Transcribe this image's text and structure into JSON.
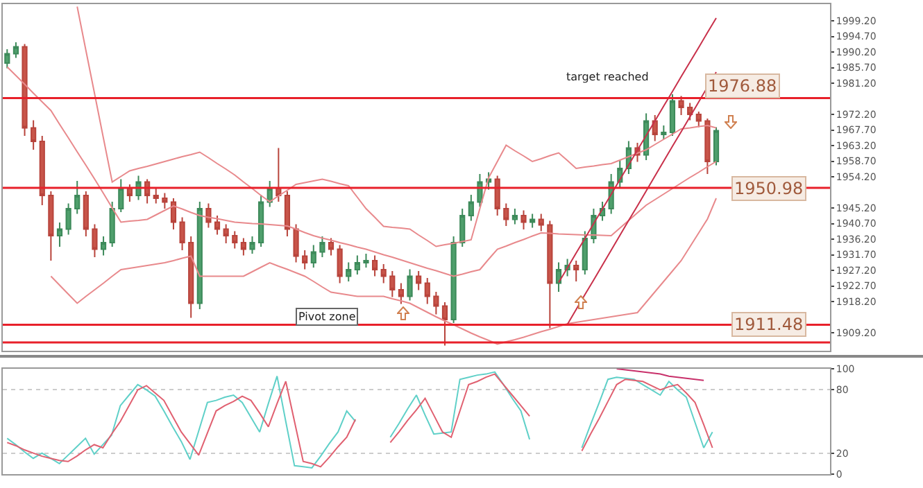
{
  "chart_data": [
    {
      "type": "candlestick",
      "categories": [
        null,
        null,
        null,
        null,
        null,
        null,
        null,
        null,
        null,
        null,
        null,
        null,
        null,
        null,
        null,
        null,
        null,
        null,
        null,
        null,
        null,
        null,
        null,
        null,
        null,
        null,
        null,
        null,
        null,
        null,
        null,
        null,
        null,
        null,
        null,
        null,
        null,
        null,
        null,
        null,
        null,
        null,
        null,
        null,
        null,
        null,
        null,
        null,
        null,
        null,
        null,
        null,
        null,
        null,
        null,
        null,
        null,
        null,
        null,
        null,
        null,
        null,
        null,
        null,
        null,
        null,
        null,
        null,
        null,
        null,
        null,
        null,
        null,
        null,
        null,
        null,
        null,
        null,
        null,
        null,
        null,
        null
      ],
      "ohlc": [
        [
          1987.0,
          1991.0,
          1985.5,
          1989.7
        ],
        [
          1989.7,
          1993.0,
          1988.5,
          1991.7
        ],
        [
          1991.7,
          1992.5,
          1966.0,
          1968.3
        ],
        [
          1968.3,
          1970.5,
          1962.0,
          1964.4
        ],
        [
          1964.4,
          1966.0,
          1946.0,
          1948.8
        ],
        [
          1948.8,
          1950.0,
          1930.0,
          1937.2
        ],
        [
          1937.2,
          1941.0,
          1934.0,
          1939.1
        ],
        [
          1939.1,
          1946.5,
          1937.5,
          1945.0
        ],
        [
          1945.0,
          1953.0,
          1943.5,
          1948.8
        ],
        [
          1948.8,
          1950.0,
          1937.0,
          1939.1
        ],
        [
          1939.1,
          1940.5,
          1931.0,
          1933.3
        ],
        [
          1933.3,
          1937.0,
          1931.5,
          1935.2
        ],
        [
          1935.2,
          1947.0,
          1934.0,
          1945.0
        ],
        [
          1945.0,
          1953.5,
          1944.0,
          1950.8
        ],
        [
          1950.8,
          1952.0,
          1947.0,
          1948.8
        ],
        [
          1948.8,
          1954.5,
          1947.5,
          1952.7
        ],
        [
          1952.7,
          1953.5,
          1946.5,
          1948.8
        ],
        [
          1948.8,
          1951.0,
          1946.5,
          1948.0
        ],
        [
          1948.0,
          1949.5,
          1945.0,
          1946.9
        ],
        [
          1946.9,
          1948.0,
          1939.0,
          1941.1
        ],
        [
          1941.1,
          1942.5,
          1933.0,
          1935.2
        ],
        [
          1935.2,
          1937.0,
          1913.5,
          1917.7
        ],
        [
          1917.7,
          1947.0,
          1916.0,
          1945.0
        ],
        [
          1945.0,
          1946.5,
          1939.5,
          1941.1
        ],
        [
          1941.1,
          1943.0,
          1937.5,
          1939.1
        ],
        [
          1939.1,
          1940.5,
          1935.0,
          1937.2
        ],
        [
          1937.2,
          1938.5,
          1933.5,
          1935.2
        ],
        [
          1935.2,
          1936.5,
          1931.5,
          1933.3
        ],
        [
          1933.3,
          1937.0,
          1932.0,
          1935.2
        ],
        [
          1935.2,
          1949.0,
          1934.0,
          1946.9
        ],
        [
          1946.9,
          1953.0,
          1945.5,
          1950.8
        ],
        [
          1950.8,
          1962.5,
          1947.0,
          1948.8
        ],
        [
          1948.8,
          1950.0,
          1937.0,
          1939.1
        ],
        [
          1939.1,
          1940.5,
          1929.5,
          1931.3
        ],
        [
          1931.3,
          1933.0,
          1927.5,
          1929.4
        ],
        [
          1929.4,
          1934.5,
          1928.0,
          1932.5
        ],
        [
          1932.5,
          1937.0,
          1931.0,
          1935.2
        ],
        [
          1935.2,
          1936.5,
          1931.5,
          1933.3
        ],
        [
          1933.3,
          1934.5,
          1923.5,
          1925.5
        ],
        [
          1925.5,
          1929.5,
          1924.0,
          1927.4
        ],
        [
          1927.4,
          1931.5,
          1926.0,
          1929.4
        ],
        [
          1929.4,
          1932.0,
          1928.0,
          1930.0
        ],
        [
          1930.0,
          1931.5,
          1925.5,
          1927.4
        ],
        [
          1927.4,
          1929.0,
          1923.5,
          1925.5
        ],
        [
          1925.5,
          1927.0,
          1919.5,
          1921.6
        ],
        [
          1921.6,
          1923.5,
          1917.5,
          1919.7
        ],
        [
          1919.7,
          1927.5,
          1918.5,
          1925.5
        ],
        [
          1925.5,
          1927.0,
          1921.5,
          1923.5
        ],
        [
          1923.5,
          1925.0,
          1917.5,
          1919.7
        ],
        [
          1919.7,
          1921.0,
          1914.5,
          1916.9
        ],
        [
          1916.9,
          1918.0,
          1905.5,
          1913.0
        ],
        [
          1913.0,
          1937.0,
          1912.0,
          1935.2
        ],
        [
          1935.2,
          1945.0,
          1934.0,
          1943.0
        ],
        [
          1943.0,
          1949.0,
          1941.5,
          1946.9
        ],
        [
          1946.9,
          1955.0,
          1945.5,
          1952.7
        ],
        [
          1952.7,
          1955.5,
          1950.5,
          1953.5
        ],
        [
          1953.5,
          1954.5,
          1943.0,
          1945.0
        ],
        [
          1945.0,
          1946.5,
          1940.0,
          1941.9
        ],
        [
          1941.9,
          1945.0,
          1940.5,
          1943.0
        ],
        [
          1943.0,
          1944.5,
          1939.0,
          1941.1
        ],
        [
          1941.1,
          1943.5,
          1939.5,
          1941.9
        ],
        [
          1941.9,
          1943.5,
          1938.5,
          1940.3
        ],
        [
          1940.3,
          1941.5,
          1910.5,
          1923.5
        ],
        [
          1923.5,
          1929.5,
          1921.0,
          1927.4
        ],
        [
          1927.4,
          1930.5,
          1925.5,
          1928.6
        ],
        [
          1928.6,
          1930.0,
          1924.0,
          1927.4
        ],
        [
          1927.4,
          1938.5,
          1926.0,
          1936.4
        ],
        [
          1936.4,
          1945.0,
          1935.0,
          1943.0
        ],
        [
          1943.0,
          1947.0,
          1941.5,
          1945.0
        ],
        [
          1945.0,
          1955.0,
          1943.5,
          1952.7
        ],
        [
          1952.7,
          1959.0,
          1951.0,
          1956.6
        ],
        [
          1956.6,
          1964.5,
          1955.0,
          1962.5
        ],
        [
          1962.5,
          1964.0,
          1958.5,
          1960.5
        ],
        [
          1960.5,
          1972.5,
          1959.0,
          1970.3
        ],
        [
          1970.3,
          1972.0,
          1964.5,
          1966.4
        ],
        [
          1966.4,
          1969.0,
          1965.0,
          1967.0
        ],
        [
          1967.0,
          1978.0,
          1966.0,
          1976.1
        ],
        [
          1976.1,
          1977.5,
          1972.0,
          1974.2
        ],
        [
          1974.2,
          1975.5,
          1970.5,
          1972.2
        ],
        [
          1972.2,
          1973.0,
          1968.5,
          1970.3
        ],
        [
          1970.3,
          1971.0,
          1955.0,
          1958.6
        ],
        [
          1958.6,
          1968.5,
          1957.5,
          1967.5
        ]
      ],
      "series": [
        {
          "type": "line",
          "color": "#e8898c",
          "values": [
            null,
            null,
            null,
            null,
            null,
            null,
            null,
            null,
            2003.3,
            1990.6,
            1978.0,
            1965.3,
            1952.7,
            1954.3,
            1955.9,
            1956.6,
            1957.2,
            1957.9,
            1958.6,
            1959.3,
            1960.0,
            1960.6,
            1961.3,
            1959.7,
            1958.0,
            1956.4,
            1954.7,
            1952.7,
            1950.8,
            1948.8,
            1947.0,
            1948.7,
            1950.3,
            1952.0,
            1952.5,
            1953.0,
            1953.5,
            1952.9,
            1952.2,
            1951.6,
            1948.3,
            1945.0,
            1942.5,
            1939.9,
            1939.6,
            1939.4,
            1939.1,
            1937.4,
            1935.8,
            1934.1,
            1934.6,
            1935.0,
            1935.5,
            1936.0,
            1945.0,
            1953.9,
            1958.6,
            1963.3,
            1961.7,
            1960.2,
            1958.6,
            1959.4,
            1960.3,
            1961.1,
            1958.9,
            1956.6,
            1957.0,
            1957.3,
            1957.7,
            1958.0,
            1959.0,
            1960.0,
            1961.0,
            1962.0,
            1963.5,
            1965.0,
            1966.5,
            1968.0,
            1968.3,
            1968.7,
            1969.0,
            1968.3
          ]
        },
        {
          "type": "line",
          "color": "#e8898c",
          "values": [
            1985.9,
            1983.4,
            1980.9,
            1978.3,
            1975.8,
            1973.3,
            1969.3,
            1965.4,
            1961.4,
            1957.5,
            1953.5,
            1949.4,
            1945.2,
            1941.1,
            1941.4,
            1941.6,
            1941.9,
            1943.2,
            1944.5,
            1945.8,
            1944.9,
            1943.9,
            1943.0,
            1942.5,
            1942.1,
            1941.6,
            1941.1,
            1940.9,
            1940.7,
            1940.6,
            1940.4,
            1940.2,
            1940.0,
            1939.1,
            1938.1,
            1937.2,
            1936.5,
            1935.9,
            1935.2,
            1934.6,
            1933.9,
            1933.3,
            1932.5,
            1931.7,
            1931.0,
            1930.2,
            1929.4,
            1928.6,
            1927.8,
            1927.1,
            1926.3,
            1925.5,
            1926.1,
            1926.8,
            1927.4,
            1930.4,
            1933.3,
            1934.2,
            1935.2,
            1936.1,
            1937.1,
            1938.0,
            1937.9,
            1937.7,
            1937.6,
            1937.5,
            1937.4,
            1937.4,
            1937.3,
            1937.2,
            1939.4,
            1941.6,
            1943.8,
            1946.0,
            1947.6,
            1949.2,
            1950.8,
            1952.4,
            1954.0,
            1955.5,
            1957.1,
            1958.6
          ]
        },
        {
          "type": "line",
          "color": "#e8898c",
          "values": [
            null,
            null,
            null,
            null,
            null,
            1925.5,
            1922.9,
            1920.3,
            1917.7,
            1919.7,
            1921.6,
            1923.5,
            1925.5,
            1927.4,
            1927.8,
            1928.2,
            1928.6,
            1929.0,
            1929.4,
            1930.0,
            1930.7,
            1931.3,
            1925.5,
            1925.5,
            1925.5,
            1925.5,
            1925.5,
            1925.5,
            1926.8,
            1928.1,
            1929.4,
            1928.4,
            1927.5,
            1926.5,
            1925.5,
            1924.0,
            1922.4,
            1920.9,
            1920.5,
            1920.1,
            1919.7,
            1919.7,
            1919.7,
            1919.7,
            1919.0,
            1918.4,
            1917.7,
            1916.4,
            1915.1,
            1913.8,
            1912.6,
            1911.5,
            1910.3,
            1909.1,
            1908.0,
            1907.0,
            1905.9,
            1906.6,
            1907.2,
            1907.9,
            1908.7,
            1909.5,
            1910.2,
            1911.0,
            1911.8,
            1912.2,
            1912.6,
            1913.0,
            1913.4,
            1913.8,
            1914.2,
            1914.6,
            1915.0,
            1918.0,
            1921.0,
            1924.0,
            1927.0,
            1930.0,
            1934.0,
            1938.0,
            1942.0,
            1948.0
          ]
        },
        {
          "type": "line",
          "color": "#c8304a",
          "values": [
            null,
            null,
            null,
            null,
            null,
            null,
            null,
            null,
            null,
            null,
            null,
            null,
            null,
            null,
            null,
            null,
            null,
            null,
            null,
            null,
            null,
            null,
            null,
            null,
            null,
            null,
            null,
            null,
            null,
            null,
            null,
            null,
            null,
            null,
            null,
            null,
            null,
            null,
            null,
            null,
            null,
            null,
            null,
            null,
            null,
            null,
            null,
            null,
            null,
            null,
            null,
            null,
            null,
            null,
            null,
            null,
            null,
            null,
            null,
            null,
            null,
            null,
            null,
            1923.7,
            1927.9,
            1932.2,
            1936.4,
            1940.7,
            1944.9,
            1949.1,
            1953.4,
            1957.6,
            1961.9,
            1966.1,
            1970.3,
            1974.6,
            1978.8,
            1983.1,
            1987.3,
            1991.5,
            1995.8,
            2000.0
          ]
        },
        {
          "type": "line",
          "color": "#c8304a",
          "values": [
            null,
            null,
            null,
            null,
            null,
            null,
            null,
            null,
            null,
            null,
            null,
            null,
            null,
            null,
            null,
            null,
            null,
            null,
            null,
            null,
            null,
            null,
            null,
            null,
            null,
            null,
            null,
            null,
            null,
            null,
            null,
            null,
            null,
            null,
            null,
            null,
            null,
            null,
            null,
            null,
            null,
            null,
            null,
            null,
            null,
            null,
            null,
            null,
            null,
            null,
            null,
            null,
            null,
            null,
            null,
            null,
            null,
            null,
            null,
            null,
            null,
            null,
            null,
            null,
            1911.6,
            1915.9,
            1920.2,
            1924.4,
            1928.7,
            1933.0,
            1937.3,
            1941.6,
            1945.8,
            1950.1,
            1954.4,
            1958.7,
            1963.0,
            1967.2,
            1971.5,
            1975.8,
            1980.1,
            1984.4
          ]
        }
      ],
      "ylim": [
        1904,
        2004
      ],
      "tick_labels": "y",
      "yticks": [
        {
          "value": 1999.2,
          "label": "1999.20"
        },
        {
          "value": 1994.7,
          "label": "1994.70"
        },
        {
          "value": 1990.2,
          "label": "1990.20"
        },
        {
          "value": 1985.7,
          "label": "1985.70"
        },
        {
          "value": 1981.2,
          "label": "1981.20"
        },
        {
          "value": 1972.2,
          "label": "1972.20"
        },
        {
          "value": 1967.7,
          "label": "1967.70"
        },
        {
          "value": 1963.2,
          "label": "1963.20"
        },
        {
          "value": 1958.7,
          "label": "1958.70"
        },
        {
          "value": 1954.2,
          "label": "1954.20"
        },
        {
          "value": 1945.2,
          "label": "1945.20"
        },
        {
          "value": 1940.7,
          "label": "1940.70"
        },
        {
          "value": 1936.2,
          "label": "1936.20"
        },
        {
          "value": 1931.7,
          "label": "1931.70"
        },
        {
          "value": 1927.2,
          "label": "1927.20"
        },
        {
          "value": 1922.7,
          "label": "1922.70"
        },
        {
          "value": 1918.2,
          "label": "1918.20"
        },
        {
          "value": 1909.2,
          "label": "1909.20"
        }
      ],
      "ref_lines": [
        {
          "axis": "y",
          "value": 1976.88,
          "label": "1976.88",
          "color": "#e8202a"
        },
        {
          "axis": "y",
          "value": 1950.98,
          "label": "1950.98",
          "color": "#e8202a"
        },
        {
          "axis": "y",
          "value": 1911.48,
          "label": "1911.48",
          "color": "#e8202a"
        },
        {
          "axis": "y",
          "value": 1906.4,
          "label": null,
          "color": "#e8202a"
        }
      ],
      "annotations": [
        "target reached",
        "Pivot zone"
      ]
    },
    {
      "type": "line",
      "categories": [
        null,
        null,
        null,
        null,
        null,
        null,
        null,
        null,
        null,
        null,
        null,
        null,
        null,
        null,
        null,
        null,
        null,
        null,
        null,
        null,
        null,
        null,
        null,
        null,
        null,
        null,
        null,
        null,
        null,
        null,
        null,
        null,
        null,
        null,
        null,
        null,
        null,
        null,
        null,
        null,
        null,
        null,
        null,
        null,
        null,
        null,
        null,
        null,
        null,
        null,
        null,
        null,
        null,
        null,
        null,
        null,
        null,
        null,
        null,
        null,
        null,
        null,
        null,
        null,
        null,
        null,
        null,
        null,
        null,
        null,
        null,
        null,
        null,
        null,
        null,
        null,
        null,
        null,
        null,
        null,
        null,
        null,
        null,
        null,
        null,
        null,
        null,
        null,
        null,
        null,
        null,
        null,
        null,
        null,
        null
      ],
      "series": [
        {
          "color": "#5fd0c8",
          "values": [
            34,
            28,
            21,
            15,
            20,
            15,
            10,
            18,
            26,
            34,
            19,
            28,
            37,
            65,
            75,
            85,
            80,
            74,
            60,
            45,
            31,
            14,
            41,
            68,
            70,
            73,
            75,
            68,
            54,
            40,
            67,
            93,
            50,
            8,
            7,
            6,
            17,
            29,
            40,
            60,
            50,
            null,
            null,
            null,
            35,
            48,
            62,
            75,
            56,
            38,
            39,
            40,
            90,
            92,
            94,
            95,
            97,
            85,
            72,
            60,
            33,
            null,
            null,
            null,
            null,
            null,
            25,
            47,
            68,
            90,
            92,
            91,
            90,
            85,
            80,
            75,
            88,
            80,
            73,
            49,
            25,
            40,
            null,
            null,
            null,
            null,
            null,
            null,
            null,
            null,
            null,
            null,
            null,
            null,
            null
          ]
        },
        {
          "color": "#e06070",
          "values": [
            30,
            27,
            23,
            20,
            17,
            15,
            13,
            12,
            17,
            23,
            28,
            25,
            38,
            50,
            65,
            80,
            84,
            77,
            70,
            55,
            40,
            29,
            18,
            39,
            60,
            65,
            69,
            74,
            70,
            58,
            45,
            67,
            88,
            50,
            12,
            10,
            7,
            16,
            26,
            35,
            52,
            null,
            null,
            null,
            30,
            40,
            51,
            61,
            72,
            56,
            40,
            35,
            60,
            85,
            88,
            92,
            95,
            85,
            75,
            65,
            55,
            null,
            null,
            null,
            null,
            null,
            22,
            38,
            53,
            69,
            85,
            90,
            89,
            88,
            84,
            80,
            83,
            85,
            77,
            68,
            47,
            25,
            null,
            null,
            null,
            null,
            null,
            null,
            null,
            null,
            null,
            null,
            null,
            null,
            null
          ]
        },
        {
          "color": "#c8306a",
          "values": [
            null,
            null,
            null,
            null,
            null,
            null,
            null,
            null,
            null,
            null,
            null,
            null,
            null,
            null,
            null,
            null,
            null,
            null,
            null,
            null,
            null,
            null,
            null,
            null,
            null,
            null,
            null,
            null,
            null,
            null,
            null,
            null,
            null,
            null,
            null,
            null,
            null,
            null,
            null,
            null,
            null,
            null,
            null,
            null,
            null,
            null,
            null,
            null,
            null,
            null,
            null,
            null,
            null,
            null,
            null,
            null,
            null,
            null,
            null,
            null,
            null,
            null,
            null,
            null,
            null,
            null,
            null,
            null,
            null,
            null,
            100,
            99,
            98,
            97,
            96,
            95,
            93,
            92,
            91,
            90,
            89,
            null,
            null,
            null,
            null,
            null,
            null,
            null,
            null,
            null,
            null,
            null,
            null,
            null,
            null
          ]
        }
      ],
      "ylim": [
        0,
        100
      ],
      "yticks": [
        0,
        20,
        80,
        100
      ],
      "grid": "y",
      "tick_labels": "y"
    }
  ]
}
